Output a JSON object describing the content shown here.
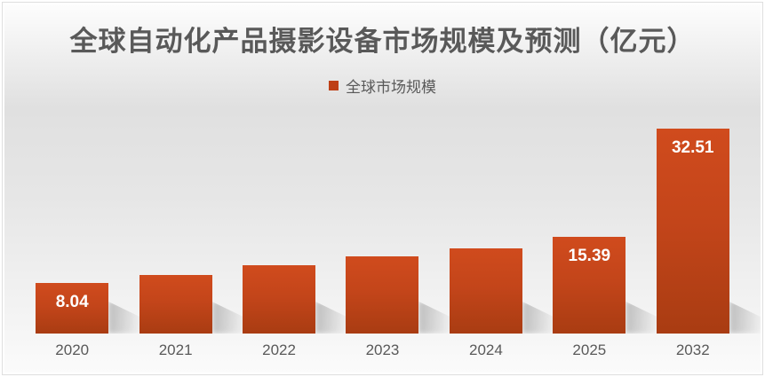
{
  "chart_data": {
    "type": "bar",
    "title": "全球自动化产品摄影设备市场规模及预测（亿元）",
    "legend": [
      {
        "label": "全球市场规模",
        "color": "#be3f16"
      }
    ],
    "legend_position": "top",
    "categories": [
      "2020",
      "2021",
      "2022",
      "2023",
      "2024",
      "2025",
      "2032"
    ],
    "series": [
      {
        "name": "全球市场规模",
        "values": [
          8.04,
          9.3,
          10.8,
          12.2,
          13.5,
          15.39,
          32.51
        ]
      }
    ],
    "data_labels": [
      "8.04",
      "",
      "",
      "",
      "",
      "15.39",
      "32.51"
    ],
    "xlabel": "",
    "ylabel": "",
    "ylim": [
      0,
      33.2
    ],
    "grid": false,
    "y_axis_shown": false,
    "colors": {
      "bar_top": "#d04b1d",
      "bar_bottom": "#a93c12",
      "data_label": "#ffffff",
      "text": "#595959",
      "background_top": "#fdfdfd",
      "background_mid": "#e2e2e2"
    }
  }
}
